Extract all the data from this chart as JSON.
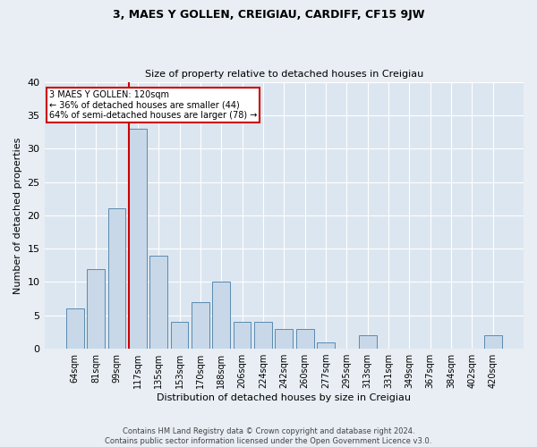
{
  "title": "3, MAES Y GOLLEN, CREIGIAU, CARDIFF, CF15 9JW",
  "subtitle": "Size of property relative to detached houses in Creigiau",
  "xlabel": "Distribution of detached houses by size in Creigiau",
  "ylabel": "Number of detached properties",
  "categories": [
    "64sqm",
    "81sqm",
    "99sqm",
    "117sqm",
    "135sqm",
    "153sqm",
    "170sqm",
    "188sqm",
    "206sqm",
    "224sqm",
    "242sqm",
    "260sqm",
    "277sqm",
    "295sqm",
    "313sqm",
    "331sqm",
    "349sqm",
    "367sqm",
    "384sqm",
    "402sqm",
    "420sqm"
  ],
  "values": [
    6,
    12,
    21,
    33,
    14,
    4,
    7,
    10,
    4,
    4,
    3,
    3,
    1,
    0,
    2,
    0,
    0,
    0,
    0,
    0,
    2
  ],
  "bar_color": "#c8d8e8",
  "bar_edge_color": "#5a8ab0",
  "marker_index": 3,
  "marker_color": "#cc0000",
  "annotation_lines": [
    "3 MAES Y GOLLEN: 120sqm",
    "← 36% of detached houses are smaller (44)",
    "64% of semi-detached houses are larger (78) →"
  ],
  "annotation_box_color": "#cc0000",
  "ylim": [
    0,
    40
  ],
  "yticks": [
    0,
    5,
    10,
    15,
    20,
    25,
    30,
    35,
    40
  ],
  "footer": "Contains HM Land Registry data © Crown copyright and database right 2024.\nContains public sector information licensed under the Open Government Licence v3.0.",
  "bg_color": "#e8eef4",
  "plot_bg_color": "#dce6f0"
}
